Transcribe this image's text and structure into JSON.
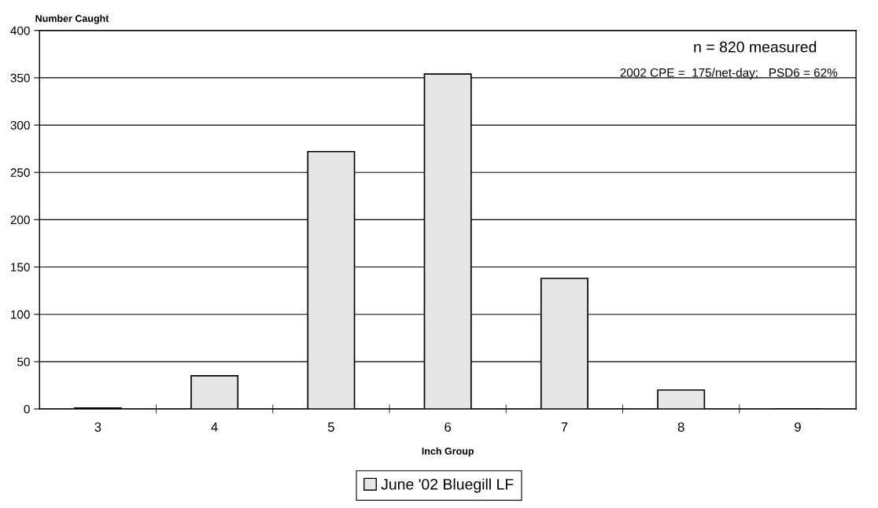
{
  "chart_data": {
    "type": "bar",
    "ylabel": "Number Caught",
    "xlabel": "Inch Group",
    "categories": [
      "3",
      "4",
      "5",
      "6",
      "7",
      "8",
      "9"
    ],
    "series": [
      {
        "name": "June '02 Bluegill LF",
        "color": "#e6e6e6",
        "values": [
          1,
          35,
          272,
          354,
          138,
          20,
          0
        ]
      }
    ],
    "ylim": [
      0,
      400
    ],
    "yticks": [
      0,
      50,
      100,
      150,
      200,
      250,
      300,
      350,
      400
    ],
    "grid": "y",
    "legend": "bottom",
    "annotations": [
      "n = 820 measured",
      "2002 CPE =  175/net-day;   PSD6 = 62%"
    ]
  }
}
